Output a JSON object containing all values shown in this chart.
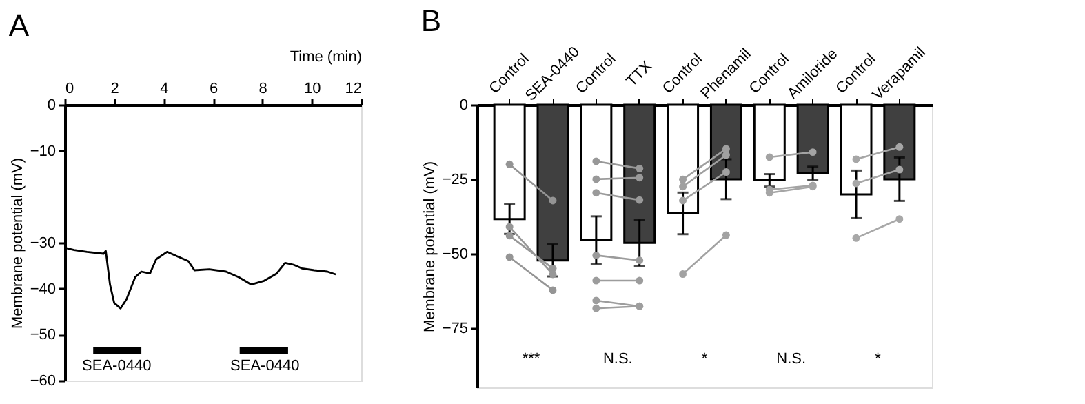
{
  "chart_data": [
    {
      "type": "line",
      "title": "A",
      "xlabel": "Time (min)",
      "ylabel": "Membrane potential (mV)",
      "xlim": [
        0,
        12
      ],
      "xticks": [
        0,
        2,
        4,
        6,
        8,
        10,
        12
      ],
      "ylim": [
        -60,
        0
      ],
      "yticks": [
        0,
        -10,
        -30,
        -40,
        -50,
        -60
      ],
      "grid": false,
      "marker": "none",
      "line_style": "solid",
      "x": [
        0,
        0.38,
        0.9,
        1.57,
        1.66,
        1.83,
        2.0,
        2.26,
        2.5,
        2.85,
        3.1,
        3.45,
        3.7,
        4.14,
        4.65,
        5.0,
        5.25,
        5.85,
        6.53,
        7.04,
        7.55,
        8.07,
        8.58,
        8.92,
        9.26,
        9.6,
        10.1,
        10.63,
        10.97
      ],
      "series": [
        {
          "color": "#000000",
          "values": [
            -31.1,
            -31.6,
            -32,
            -32.4,
            -31.8,
            -39.1,
            -43.1,
            -44.3,
            -42.3,
            -37.5,
            -36.3,
            -36.7,
            -33.6,
            -32,
            -33.2,
            -34,
            -36,
            -35.8,
            -36.3,
            -37.5,
            -39.1,
            -38.3,
            -36.7,
            -34.4,
            -34.8,
            -35.6,
            -36,
            -36.3,
            -36.9
          ]
        },
        {
          "type": "line",
          "color": "#000000",
          "x": [
            1.15,
            3.1
          ],
          "values": [
            -53.5,
            -53.5
          ]
        },
        {
          "type": "line",
          "color": "#000000",
          "x": [
            7.08,
            9.04
          ],
          "values": [
            -53.5,
            -53.5
          ]
        }
      ],
      "annotations": [
        {
          "text": "SEA-0440",
          "x": 2.1,
          "y": -53.5
        },
        {
          "text": "SEA-0440",
          "x": 8.1,
          "y": -53.5
        }
      ]
    },
    {
      "type": "bar",
      "title": "B",
      "ylabel": "Membrane potential (mV)",
      "ylim": [
        -95,
        0
      ],
      "yticks": [
        0,
        -25,
        -50,
        -75
      ],
      "grid": false,
      "categories": [
        "Control",
        "SEA-0440",
        "Control",
        "TTX",
        "Control",
        "Phenamil",
        "Control",
        "Amiloride",
        "Control",
        "Verapamil"
      ],
      "values": [
        -38.4,
        -52.3,
        -45.5,
        -46.4,
        -36.5,
        -25,
        -25.4,
        -23,
        -30.1,
        -25
      ],
      "errors": [
        5,
        5.4,
        8,
        7.8,
        7,
        6.7,
        2.1,
        2.2,
        8,
        7.3
      ],
      "colors": [
        "#ffffff",
        "#404040",
        "#ffffff",
        "#404040",
        "#ffffff",
        "#404040",
        "#ffffff",
        "#404040",
        "#ffffff",
        "#404040"
      ],
      "marker": "circle",
      "series": [
        {
          "type": "line",
          "color": "#949494",
          "values": [
            -20,
            -32.2,
            null,
            null,
            null,
            null,
            null,
            null,
            null,
            null
          ]
        },
        {
          "type": "line",
          "color": "#959595",
          "values": [
            -51.2,
            -62.3,
            null,
            null,
            null,
            null,
            null,
            null,
            null,
            null
          ]
        },
        {
          "type": "line",
          "color": "#969696",
          "values": [
            -44,
            -55,
            null,
            null,
            null,
            null,
            null,
            null,
            null,
            null
          ]
        },
        {
          "type": "line",
          "color": "#979797",
          "values": [
            -41,
            -57,
            null,
            null,
            null,
            null,
            null,
            null,
            null,
            null
          ]
        },
        {
          "type": "line",
          "color": "#989898",
          "values": [
            null,
            null,
            -19,
            -21.4,
            null,
            null,
            null,
            null,
            null,
            null
          ]
        },
        {
          "type": "line",
          "color": "#999999",
          "values": [
            null,
            null,
            -25,
            -24.5,
            null,
            null,
            null,
            null,
            null,
            null
          ]
        },
        {
          "type": "line",
          "color": "#9a9a9a",
          "values": [
            null,
            null,
            -29.6,
            -32,
            null,
            null,
            null,
            null,
            null,
            null
          ]
        },
        {
          "type": "line",
          "color": "#9b9b9b",
          "values": [
            null,
            null,
            -50.6,
            -52.3,
            null,
            null,
            null,
            null,
            null,
            null
          ]
        },
        {
          "type": "line",
          "color": "#9c9c9c",
          "values": [
            null,
            null,
            -59.1,
            -59.1,
            null,
            null,
            null,
            null,
            null,
            null
          ]
        },
        {
          "type": "line",
          "color": "#9d9d9d",
          "values": [
            null,
            null,
            -65.8,
            -67.7,
            null,
            null,
            null,
            null,
            null,
            null
          ]
        },
        {
          "type": "line",
          "color": "#9e9e9e",
          "values": [
            null,
            null,
            -68.4,
            -67.7,
            null,
            null,
            null,
            null,
            null,
            null
          ]
        },
        {
          "type": "line",
          "color": "#9f9f9f",
          "values": [
            null,
            null,
            null,
            null,
            -25.1,
            -14.8,
            null,
            null,
            null,
            null
          ]
        },
        {
          "type": "line",
          "color": "#a0a0a0",
          "values": [
            null,
            null,
            null,
            null,
            -27.5,
            -16.9,
            null,
            null,
            null,
            null
          ]
        },
        {
          "type": "line",
          "color": "#a1a1a1",
          "values": [
            null,
            null,
            null,
            null,
            -32.2,
            -22.6,
            null,
            null,
            null,
            null
          ]
        },
        {
          "type": "line",
          "color": "#a2a2a2",
          "values": [
            null,
            null,
            null,
            null,
            -56.9,
            -43.8,
            null,
            null,
            null,
            null
          ]
        },
        {
          "type": "line",
          "color": "#a3a3a3",
          "values": [
            null,
            null,
            null,
            null,
            null,
            null,
            -17.6,
            -15.9,
            null,
            null
          ]
        },
        {
          "type": "line",
          "color": "#a4a4a4",
          "values": [
            null,
            null,
            null,
            null,
            null,
            null,
            -28.5,
            -27.1,
            null,
            null
          ]
        },
        {
          "type": "line",
          "color": "#a5a5a5",
          "values": [
            null,
            null,
            null,
            null,
            null,
            null,
            -29.6,
            -27.5,
            null,
            null
          ]
        },
        {
          "type": "line",
          "color": "#a6a6a6",
          "values": [
            null,
            null,
            null,
            null,
            null,
            null,
            null,
            null,
            -18.3,
            -14.2
          ]
        },
        {
          "type": "line",
          "color": "#a7a7a7",
          "values": [
            null,
            null,
            null,
            null,
            null,
            null,
            null,
            null,
            -26.4,
            -21.8
          ]
        },
        {
          "type": "line",
          "color": "#a8a8a8",
          "values": [
            null,
            null,
            null,
            null,
            null,
            null,
            null,
            null,
            -44.8,
            -38.4
          ]
        }
      ],
      "annotations": [
        "***",
        "N.S.",
        "*",
        "N.S.",
        "*"
      ]
    }
  ]
}
